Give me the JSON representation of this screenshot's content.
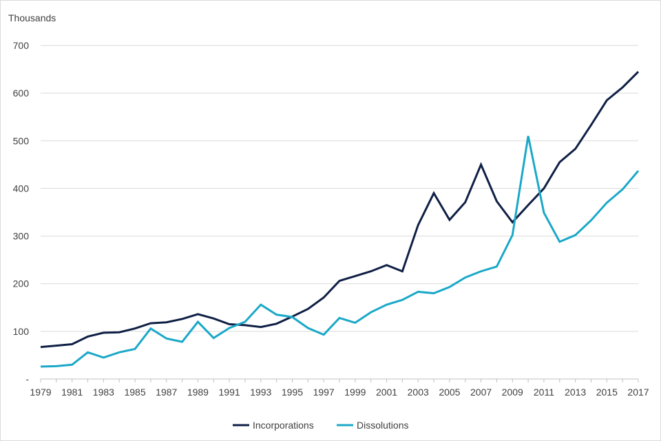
{
  "chart_data": {
    "type": "line",
    "ylabel": "Thousands",
    "ylim": [
      0,
      700
    ],
    "yticks": [
      {
        "value": 0,
        "label": "-"
      },
      {
        "value": 100,
        "label": "100"
      },
      {
        "value": 200,
        "label": "200"
      },
      {
        "value": 300,
        "label": "300"
      },
      {
        "value": 400,
        "label": "400"
      },
      {
        "value": 500,
        "label": "500"
      },
      {
        "value": 600,
        "label": "600"
      },
      {
        "value": 700,
        "label": "700"
      }
    ],
    "x": [
      1979,
      1980,
      1981,
      1982,
      1983,
      1984,
      1985,
      1986,
      1987,
      1988,
      1989,
      1990,
      1991,
      1992,
      1993,
      1994,
      1995,
      1996,
      1997,
      1998,
      1999,
      2000,
      2001,
      2002,
      2003,
      2004,
      2005,
      2006,
      2007,
      2008,
      2009,
      2010,
      2011,
      2012,
      2013,
      2014,
      2015,
      2016,
      2017
    ],
    "xtick_labels": [
      "1979",
      "1981",
      "1983",
      "1985",
      "1987",
      "1989",
      "1991",
      "1993",
      "1995",
      "1997",
      "1999",
      "2001",
      "2003",
      "2005",
      "2007",
      "2009",
      "2011",
      "2013",
      "2015",
      "2017"
    ],
    "grid": true,
    "legend_position": "bottom",
    "series": [
      {
        "name": "Incorporations",
        "color": "#0f1f45",
        "values": [
          67,
          70,
          73,
          89,
          97,
          98,
          106,
          117,
          119,
          126,
          136,
          127,
          115,
          113,
          109,
          116,
          131,
          147,
          171,
          206,
          216,
          226,
          239,
          226,
          323,
          390,
          334,
          371,
          450,
          373,
          329,
          365,
          400,
          455,
          483,
          533,
          585,
          612,
          645
        ]
      },
      {
        "name": "Dissolutions",
        "color": "#1aa8c8",
        "values": [
          26,
          27,
          30,
          56,
          45,
          56,
          63,
          106,
          85,
          78,
          120,
          86,
          107,
          120,
          156,
          135,
          130,
          107,
          93,
          128,
          118,
          140,
          156,
          166,
          183,
          180,
          193,
          213,
          226,
          236,
          302,
          510,
          349,
          288,
          302,
          333,
          370,
          398,
          437
        ]
      }
    ]
  }
}
